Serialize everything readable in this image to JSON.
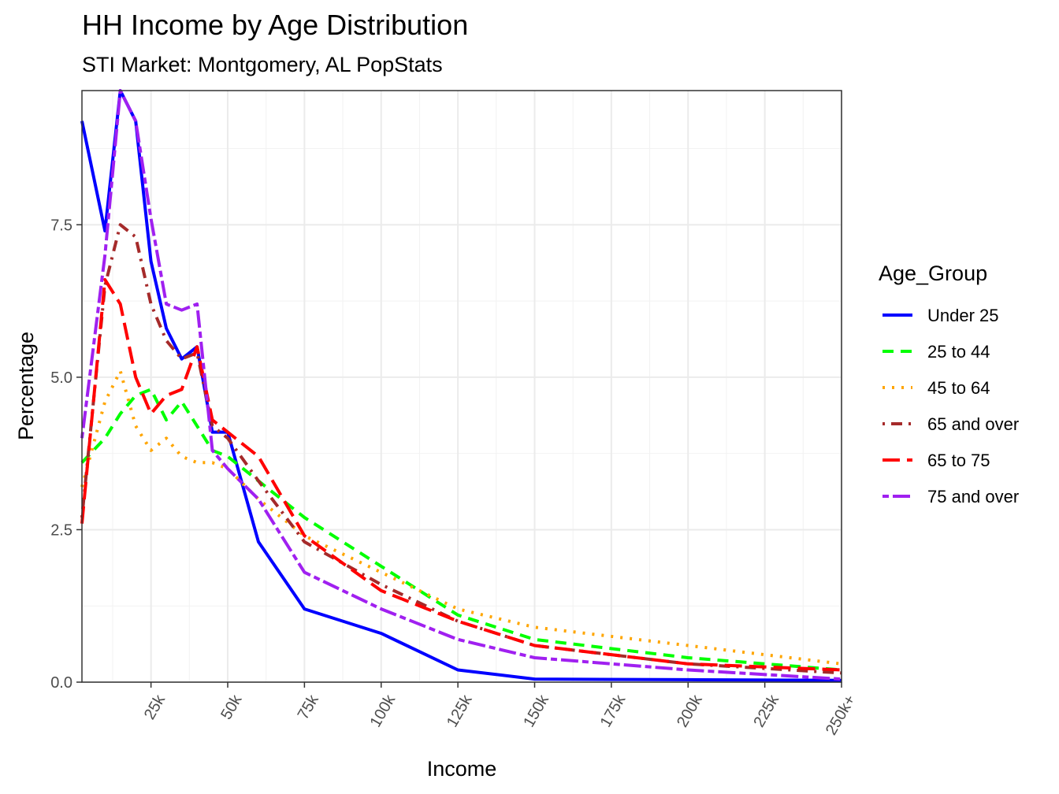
{
  "chart_data": {
    "type": "line",
    "title": "HH Income by Age Distribution",
    "subtitle": "STI Market: Montgomery, AL PopStats",
    "xlabel": "Income",
    "ylabel": "Percentage",
    "xlim": [
      2500,
      250000
    ],
    "ylim": [
      0,
      9.7
    ],
    "x_ticks": [
      {
        "value": 25000,
        "label": "25k"
      },
      {
        "value": 50000,
        "label": "50k"
      },
      {
        "value": 75000,
        "label": "75k"
      },
      {
        "value": 100000,
        "label": "100k"
      },
      {
        "value": 125000,
        "label": "125k"
      },
      {
        "value": 150000,
        "label": "150k"
      },
      {
        "value": 175000,
        "label": "175k"
      },
      {
        "value": 200000,
        "label": "200k"
      },
      {
        "value": 225000,
        "label": "225k"
      },
      {
        "value": 250000,
        "label": "250k+"
      }
    ],
    "y_ticks": [
      {
        "value": 0,
        "label": "0.0"
      },
      {
        "value": 2.5,
        "label": "2.5"
      },
      {
        "value": 5,
        "label": "5.0"
      },
      {
        "value": 7.5,
        "label": "7.5"
      }
    ],
    "grid": true,
    "legend_title": "Age_Group",
    "legend_position": "right",
    "x": [
      2500,
      10000,
      15000,
      20000,
      25000,
      30000,
      35000,
      40000,
      45000,
      50000,
      60000,
      75000,
      100000,
      125000,
      150000,
      200000,
      250000
    ],
    "series": [
      {
        "name": "Under 25",
        "color": "#0000ff",
        "dash": "solid",
        "values": [
          9.2,
          7.4,
          9.7,
          9.2,
          6.9,
          5.8,
          5.3,
          5.5,
          4.1,
          4.1,
          2.3,
          1.2,
          0.8,
          0.2,
          0.05,
          0.04,
          0.03
        ]
      },
      {
        "name": "25 to 44",
        "color": "#00ff00",
        "dash": "dashed",
        "values": [
          3.6,
          4.0,
          4.4,
          4.7,
          4.8,
          4.3,
          4.6,
          4.2,
          3.8,
          3.7,
          3.3,
          2.7,
          1.9,
          1.1,
          0.7,
          0.4,
          0.2
        ]
      },
      {
        "name": "45 to 64",
        "color": "#ffa500",
        "dash": "dotted",
        "values": [
          3.2,
          4.6,
          5.1,
          4.2,
          3.8,
          4.0,
          3.7,
          3.6,
          3.6,
          3.5,
          3.0,
          2.4,
          1.8,
          1.2,
          0.9,
          0.6,
          0.3
        ]
      },
      {
        "name": "65 and over",
        "color": "#a52a2a",
        "dash": "dotdash",
        "values": [
          2.7,
          6.5,
          7.5,
          7.3,
          6.2,
          5.6,
          5.3,
          5.4,
          4.2,
          4.0,
          3.3,
          2.3,
          1.6,
          1.0,
          0.6,
          0.3,
          0.15
        ]
      },
      {
        "name": "65 to 75",
        "color": "#ff0000",
        "dash": "longdash",
        "values": [
          2.6,
          6.6,
          6.2,
          5.0,
          4.4,
          4.7,
          4.8,
          5.5,
          4.3,
          4.1,
          3.7,
          2.4,
          1.5,
          1.0,
          0.6,
          0.3,
          0.2
        ]
      },
      {
        "name": "75 and over",
        "color": "#a020f0",
        "dash": "twodash",
        "values": [
          4.0,
          7.0,
          9.7,
          9.2,
          7.6,
          6.2,
          6.1,
          6.2,
          3.8,
          3.5,
          3.0,
          1.8,
          1.2,
          0.7,
          0.4,
          0.2,
          0.05
        ]
      }
    ]
  }
}
